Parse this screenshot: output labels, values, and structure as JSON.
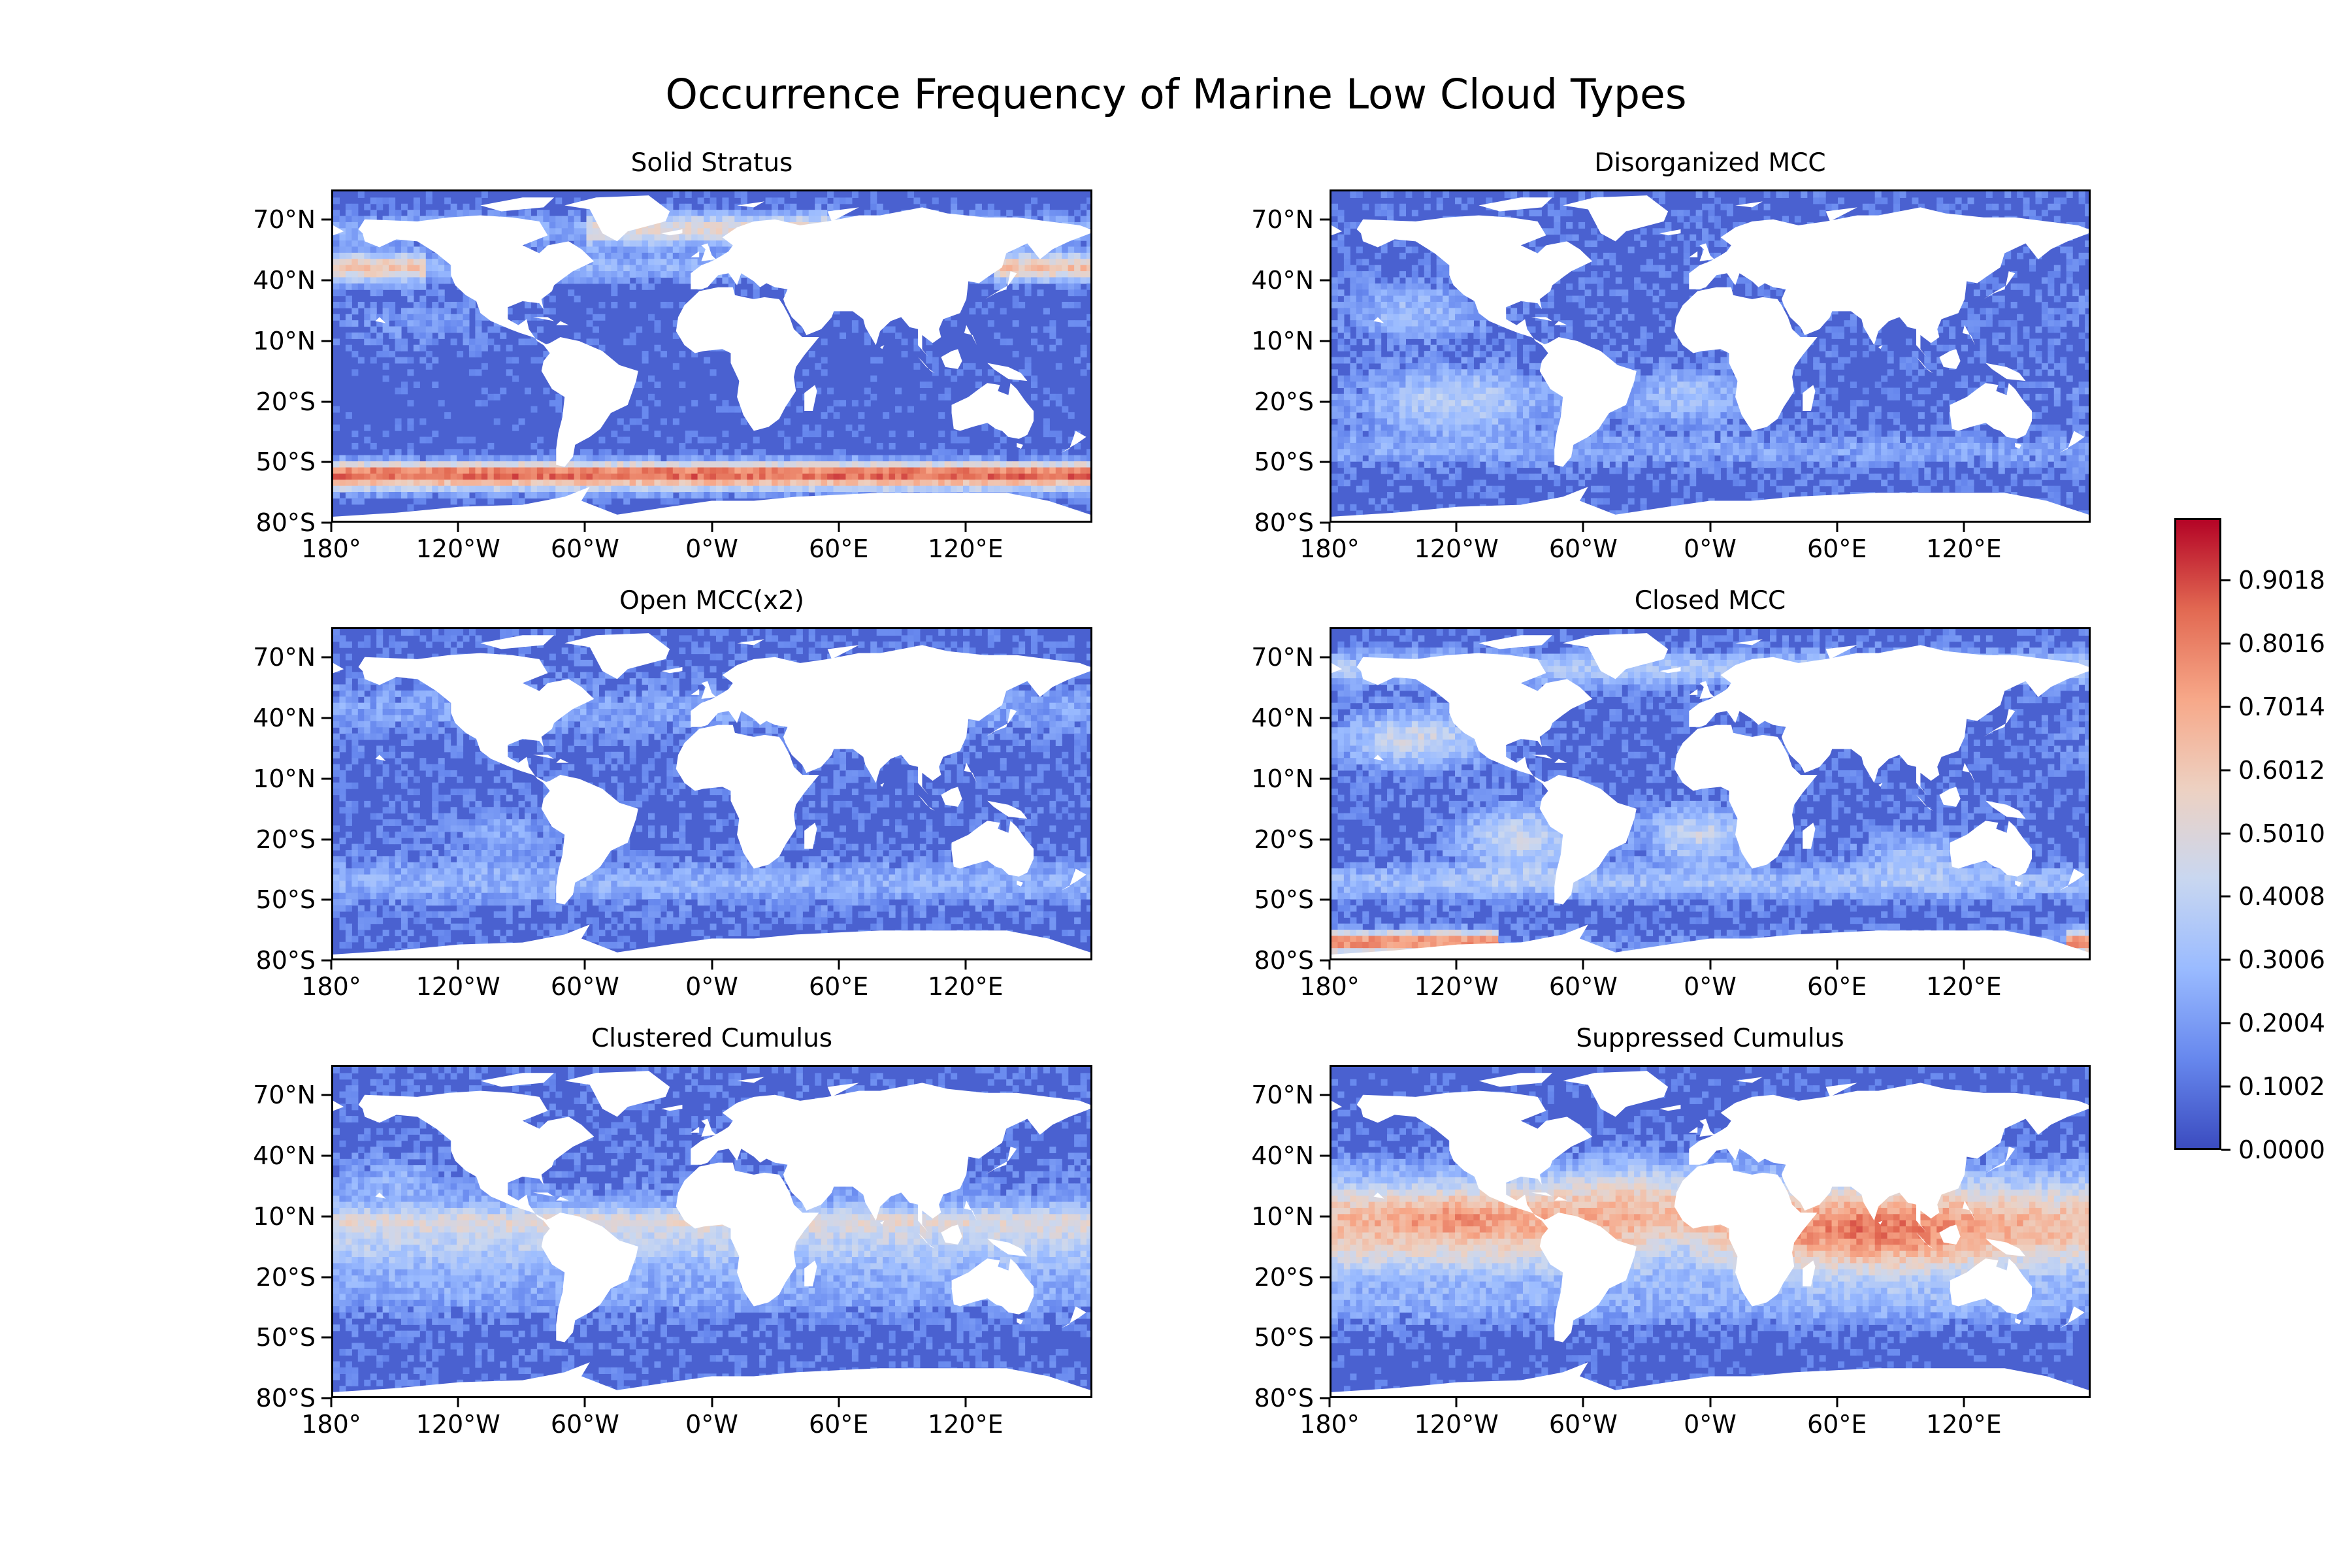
{
  "title": "Occurrence Frequency of Marine Low Cloud Types",
  "panels": [
    {
      "title": "Solid Stratus",
      "pattern": "stratus"
    },
    {
      "title": "Disorganized MCC",
      "pattern": "disorganized"
    },
    {
      "title": "Open MCC(x2)",
      "pattern": "open"
    },
    {
      "title": "Closed MCC",
      "pattern": "closed"
    },
    {
      "title": "Clustered Cumulus",
      "pattern": "clustered"
    },
    {
      "title": "Suppressed Cumulus",
      "pattern": "suppressed"
    }
  ],
  "axes": {
    "y_ticks": [
      {
        "label": "70°N",
        "lat": 70
      },
      {
        "label": "40°N",
        "lat": 40
      },
      {
        "label": "10°N",
        "lat": 10
      },
      {
        "label": "20°S",
        "lat": -20
      },
      {
        "label": "50°S",
        "lat": -50
      },
      {
        "label": "80°S",
        "lat": -80
      }
    ],
    "x_ticks": [
      {
        "label": "180°",
        "lon": -180
      },
      {
        "label": "120°W",
        "lon": -120
      },
      {
        "label": "60°W",
        "lon": -60
      },
      {
        "label": "0°W",
        "lon": 0
      },
      {
        "label": "60°E",
        "lon": 60
      },
      {
        "label": "120°E",
        "lon": 120
      }
    ]
  },
  "colorbar": {
    "colormap": "coolwarm",
    "colors": [
      "#3b4cc0",
      "#6788ee",
      "#9abbff",
      "#c9d7f0",
      "#edd1c2",
      "#f7a889",
      "#e26952",
      "#b40426"
    ],
    "ticks": [
      "0.0000",
      "0.1002",
      "0.2004",
      "0.3006",
      "0.4008",
      "0.5010",
      "0.6012",
      "0.7014",
      "0.8016",
      "0.9018"
    ],
    "min": 0,
    "max": 1
  }
}
